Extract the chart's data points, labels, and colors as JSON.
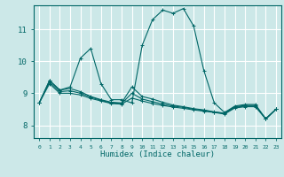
{
  "title": "",
  "xlabel": "Humidex (Indice chaleur)",
  "ylabel": "",
  "bg_color": "#cce8e8",
  "line_color": "#006666",
  "grid_color": "#ffffff",
  "xlim": [
    -0.5,
    23.5
  ],
  "ylim": [
    7.6,
    11.75
  ],
  "xticks": [
    0,
    1,
    2,
    3,
    4,
    5,
    6,
    7,
    8,
    9,
    10,
    11,
    12,
    13,
    14,
    15,
    16,
    17,
    18,
    19,
    20,
    21,
    22,
    23
  ],
  "yticks": [
    8,
    9,
    10,
    11
  ],
  "series": [
    [
      8.7,
      9.4,
      9.1,
      9.2,
      10.1,
      10.4,
      9.3,
      8.8,
      8.8,
      8.7,
      10.5,
      11.3,
      11.6,
      11.5,
      11.65,
      11.1,
      9.7,
      8.7,
      8.4,
      8.6,
      8.65,
      8.65,
      8.2,
      8.5
    ],
    [
      8.7,
      9.4,
      9.1,
      9.15,
      9.05,
      8.9,
      8.8,
      8.72,
      8.7,
      9.2,
      8.9,
      8.82,
      8.72,
      8.63,
      8.58,
      8.52,
      8.48,
      8.42,
      8.38,
      8.58,
      8.62,
      8.62,
      8.2,
      8.5
    ],
    [
      8.7,
      9.35,
      9.05,
      9.08,
      9.0,
      8.88,
      8.78,
      8.7,
      8.68,
      9.0,
      8.82,
      8.74,
      8.66,
      8.6,
      8.56,
      8.5,
      8.46,
      8.41,
      8.37,
      8.56,
      8.6,
      8.6,
      8.2,
      8.5
    ],
    [
      8.7,
      9.3,
      9.0,
      9.0,
      8.95,
      8.84,
      8.76,
      8.68,
      8.66,
      8.85,
      8.76,
      8.68,
      8.62,
      8.57,
      8.53,
      8.48,
      8.44,
      8.4,
      8.35,
      8.54,
      8.58,
      8.58,
      8.2,
      8.5
    ]
  ]
}
